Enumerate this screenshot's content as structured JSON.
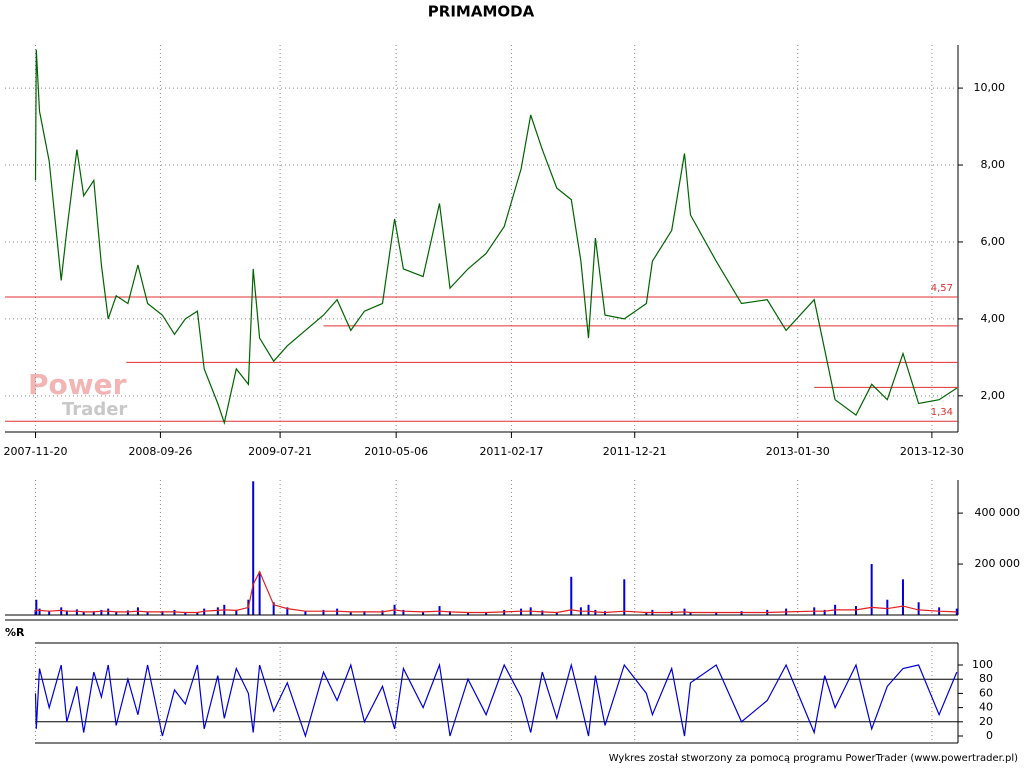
{
  "chart_data": [
    {
      "type": "line",
      "title": "PRIMAMODA",
      "color": "#006400",
      "grid": true,
      "xlim": [
        "2007-09-05",
        "2014-03-05"
      ],
      "xticks": [
        "2007-11-20",
        "2008-09-26",
        "2009-07-21",
        "2010-05-06",
        "2011-02-17",
        "2011-12-21",
        "2013-01-30",
        "2013-12-30"
      ],
      "ylim": [
        1.06,
        11.12
      ],
      "yticks": [
        {
          "value": 2,
          "label": "2,00"
        },
        {
          "value": 4,
          "label": "4,00"
        },
        {
          "value": 6,
          "label": "6,00"
        },
        {
          "value": 8,
          "label": "8,00"
        },
        {
          "value": 10,
          "label": "10,00"
        }
      ],
      "hline_color": "#e03030",
      "hlines": [
        {
          "value": 4.57,
          "label": "4,57",
          "from": "2007-09-05"
        },
        {
          "value": 3.82,
          "from": "2009-11-06"
        },
        {
          "value": 2.87,
          "from": "2008-07-03"
        },
        {
          "value": 2.22,
          "from": "2013-03-12"
        },
        {
          "value": 1.34,
          "label": "1,34",
          "from": "2007-09-05"
        }
      ],
      "x": [
        "2007-11-20",
        "2007-11-22",
        "2007-11-30",
        "2007-12-24",
        "2008-01-23",
        "2008-02-06",
        "2008-03-02",
        "2008-03-19",
        "2008-04-13",
        "2008-05-02",
        "2008-05-19",
        "2008-06-08",
        "2008-07-07",
        "2008-08-01",
        "2008-08-25",
        "2008-10-01",
        "2008-10-31",
        "2008-11-27",
        "2008-12-27",
        "2009-01-13",
        "2009-02-16",
        "2009-03-04",
        "2009-04-03",
        "2009-05-03",
        "2009-05-15",
        "2009-05-31",
        "2009-07-05",
        "2009-08-08",
        "2009-09-22",
        "2009-11-06",
        "2009-12-10",
        "2010-01-13",
        "2010-02-16",
        "2010-04-02",
        "2010-05-02",
        "2010-05-24",
        "2010-07-12",
        "2010-08-22",
        "2010-09-17",
        "2010-11-01",
        "2010-12-16",
        "2011-01-30",
        "2011-03-13",
        "2011-04-06",
        "2011-05-05",
        "2011-06-10",
        "2011-07-16",
        "2011-08-09",
        "2011-08-28",
        "2011-09-14",
        "2011-10-08",
        "2011-11-25",
        "2012-01-19",
        "2012-02-03",
        "2012-03-22",
        "2012-04-23",
        "2012-05-08",
        "2012-07-11",
        "2012-09-12",
        "2012-11-15",
        "2013-01-01",
        "2013-03-12",
        "2013-04-07",
        "2013-05-03",
        "2013-06-24",
        "2013-08-02",
        "2013-09-10",
        "2013-10-19",
        "2013-11-27",
        "2014-01-17",
        "2014-03-02"
      ],
      "values": [
        7.6,
        11.0,
        9.4,
        8.1,
        5.0,
        6.3,
        8.4,
        7.2,
        7.6,
        5.4,
        4.0,
        4.6,
        4.4,
        5.4,
        4.4,
        4.1,
        3.6,
        4.0,
        4.2,
        2.7,
        1.8,
        1.3,
        2.7,
        2.3,
        5.3,
        3.5,
        2.9,
        3.3,
        3.7,
        4.1,
        4.5,
        3.7,
        4.2,
        4.4,
        6.6,
        5.3,
        5.1,
        7.0,
        4.8,
        5.3,
        5.7,
        6.4,
        7.9,
        9.3,
        8.4,
        7.4,
        7.1,
        5.5,
        3.5,
        6.1,
        4.1,
        4.0,
        4.4,
        5.5,
        6.3,
        8.3,
        6.7,
        5.5,
        4.4,
        4.5,
        3.7,
        4.5,
        3.2,
        1.9,
        1.5,
        2.3,
        1.9,
        3.1,
        1.8,
        1.9,
        2.2
      ]
    },
    {
      "type": "bar",
      "color": "#0000dd",
      "ma_color": "#e02020",
      "xlim": [
        "2007-09-05",
        "2014-03-05"
      ],
      "ylim": [
        0,
        530000
      ],
      "yticks": [
        {
          "value": 200000,
          "label": "200 000"
        },
        {
          "value": 400000,
          "label": "400 000"
        }
      ],
      "x": [
        "2007-11-20",
        "2007-11-22",
        "2007-11-30",
        "2007-12-24",
        "2008-01-23",
        "2008-02-06",
        "2008-03-02",
        "2008-03-19",
        "2008-04-13",
        "2008-05-02",
        "2008-05-19",
        "2008-06-08",
        "2008-07-07",
        "2008-08-01",
        "2008-08-25",
        "2008-10-01",
        "2008-10-31",
        "2008-11-27",
        "2008-12-27",
        "2009-01-13",
        "2009-02-16",
        "2009-03-04",
        "2009-04-03",
        "2009-05-03",
        "2009-05-15",
        "2009-05-31",
        "2009-07-05",
        "2009-08-08",
        "2009-09-22",
        "2009-11-06",
        "2009-12-10",
        "2010-01-13",
        "2010-02-16",
        "2010-04-02",
        "2010-05-02",
        "2010-05-24",
        "2010-07-12",
        "2010-08-22",
        "2010-09-17",
        "2010-11-01",
        "2010-12-16",
        "2011-01-30",
        "2011-03-13",
        "2011-04-06",
        "2011-05-05",
        "2011-06-10",
        "2011-07-16",
        "2011-08-09",
        "2011-08-28",
        "2011-09-14",
        "2011-10-08",
        "2011-11-25",
        "2012-01-19",
        "2012-02-03",
        "2012-03-22",
        "2012-04-23",
        "2012-05-08",
        "2012-07-11",
        "2012-09-12",
        "2012-11-15",
        "2013-01-01",
        "2013-03-12",
        "2013-04-07",
        "2013-05-03",
        "2013-06-24",
        "2013-08-02",
        "2013-09-10",
        "2013-10-19",
        "2013-11-27",
        "2014-01-17",
        "2014-03-02"
      ],
      "values": [
        20000,
        60000,
        25000,
        15000,
        30000,
        18000,
        22000,
        12000,
        15000,
        20000,
        25000,
        14000,
        18000,
        30000,
        12000,
        15000,
        20000,
        10000,
        12000,
        25000,
        30000,
        40000,
        20000,
        60000,
        525000,
        170000,
        50000,
        30000,
        15000,
        20000,
        25000,
        12000,
        15000,
        18000,
        40000,
        20000,
        12000,
        35000,
        15000,
        10000,
        12000,
        20000,
        25000,
        30000,
        18000,
        12000,
        150000,
        30000,
        40000,
        20000,
        15000,
        140000,
        12000,
        20000,
        15000,
        25000,
        12000,
        10000,
        15000,
        20000,
        25000,
        30000,
        20000,
        40000,
        35000,
        200000,
        60000,
        140000,
        50000,
        30000,
        25000
      ],
      "ma_values": [
        12000,
        20000,
        18000,
        15000,
        18000,
        15000,
        15000,
        12000,
        12000,
        15000,
        15000,
        12000,
        12000,
        15000,
        12000,
        12000,
        12000,
        10000,
        10000,
        15000,
        18000,
        20000,
        18000,
        30000,
        120000,
        170000,
        40000,
        25000,
        15000,
        15000,
        15000,
        12000,
        12000,
        12000,
        20000,
        15000,
        12000,
        15000,
        12000,
        10000,
        10000,
        12000,
        15000,
        15000,
        12000,
        10000,
        20000,
        15000,
        15000,
        12000,
        10000,
        15000,
        10000,
        10000,
        10000,
        12000,
        10000,
        10000,
        10000,
        10000,
        12000,
        15000,
        15000,
        20000,
        20000,
        30000,
        25000,
        35000,
        20000,
        15000,
        12000
      ]
    },
    {
      "type": "line",
      "title": "%R",
      "color": "#0000dd",
      "xlim": [
        "2007-09-05",
        "2014-03-05"
      ],
      "ylim": [
        0,
        100
      ],
      "yticks": [
        0,
        20,
        40,
        60,
        80,
        100
      ],
      "reflines": [
        20,
        80
      ],
      "x": [
        "2007-11-20",
        "2007-11-22",
        "2007-11-30",
        "2007-12-24",
        "2008-01-23",
        "2008-02-06",
        "2008-03-02",
        "2008-03-19",
        "2008-04-13",
        "2008-05-02",
        "2008-05-19",
        "2008-06-08",
        "2008-07-07",
        "2008-08-01",
        "2008-08-25",
        "2008-10-01",
        "2008-10-31",
        "2008-11-27",
        "2008-12-27",
        "2009-01-13",
        "2009-02-16",
        "2009-03-04",
        "2009-04-03",
        "2009-05-03",
        "2009-05-15",
        "2009-05-31",
        "2009-07-05",
        "2009-08-08",
        "2009-09-22",
        "2009-11-06",
        "2009-12-10",
        "2010-01-13",
        "2010-02-16",
        "2010-04-02",
        "2010-05-02",
        "2010-05-24",
        "2010-07-12",
        "2010-08-22",
        "2010-09-17",
        "2010-11-01",
        "2010-12-16",
        "2011-01-30",
        "2011-03-13",
        "2011-04-06",
        "2011-05-05",
        "2011-06-10",
        "2011-07-16",
        "2011-08-09",
        "2011-08-28",
        "2011-09-14",
        "2011-10-08",
        "2011-11-25",
        "2012-01-19",
        "2012-02-03",
        "2012-03-22",
        "2012-04-23",
        "2012-05-08",
        "2012-07-11",
        "2012-09-12",
        "2012-11-15",
        "2013-01-01",
        "2013-03-12",
        "2013-04-07",
        "2013-05-03",
        "2013-06-24",
        "2013-08-02",
        "2013-09-10",
        "2013-10-19",
        "2013-11-27",
        "2014-01-17",
        "2014-03-02"
      ],
      "values": [
        60,
        10,
        95,
        40,
        100,
        20,
        70,
        5,
        90,
        55,
        100,
        15,
        80,
        30,
        100,
        0,
        65,
        45,
        100,
        10,
        85,
        25,
        95,
        60,
        5,
        100,
        35,
        75,
        0,
        90,
        50,
        100,
        20,
        70,
        10,
        95,
        40,
        100,
        0,
        80,
        30,
        100,
        55,
        5,
        90,
        25,
        100,
        45,
        0,
        85,
        15,
        100,
        60,
        30,
        95,
        0,
        75,
        100,
        20,
        50,
        100,
        5,
        85,
        40,
        100,
        10,
        70,
        95,
        100,
        30,
        90
      ]
    }
  ],
  "logo": {
    "line1": "Power",
    "line2": "Trader"
  },
  "footer": "Wykres został stworzony za pomocą programu PowerTrader (www.powertrader.pl)"
}
